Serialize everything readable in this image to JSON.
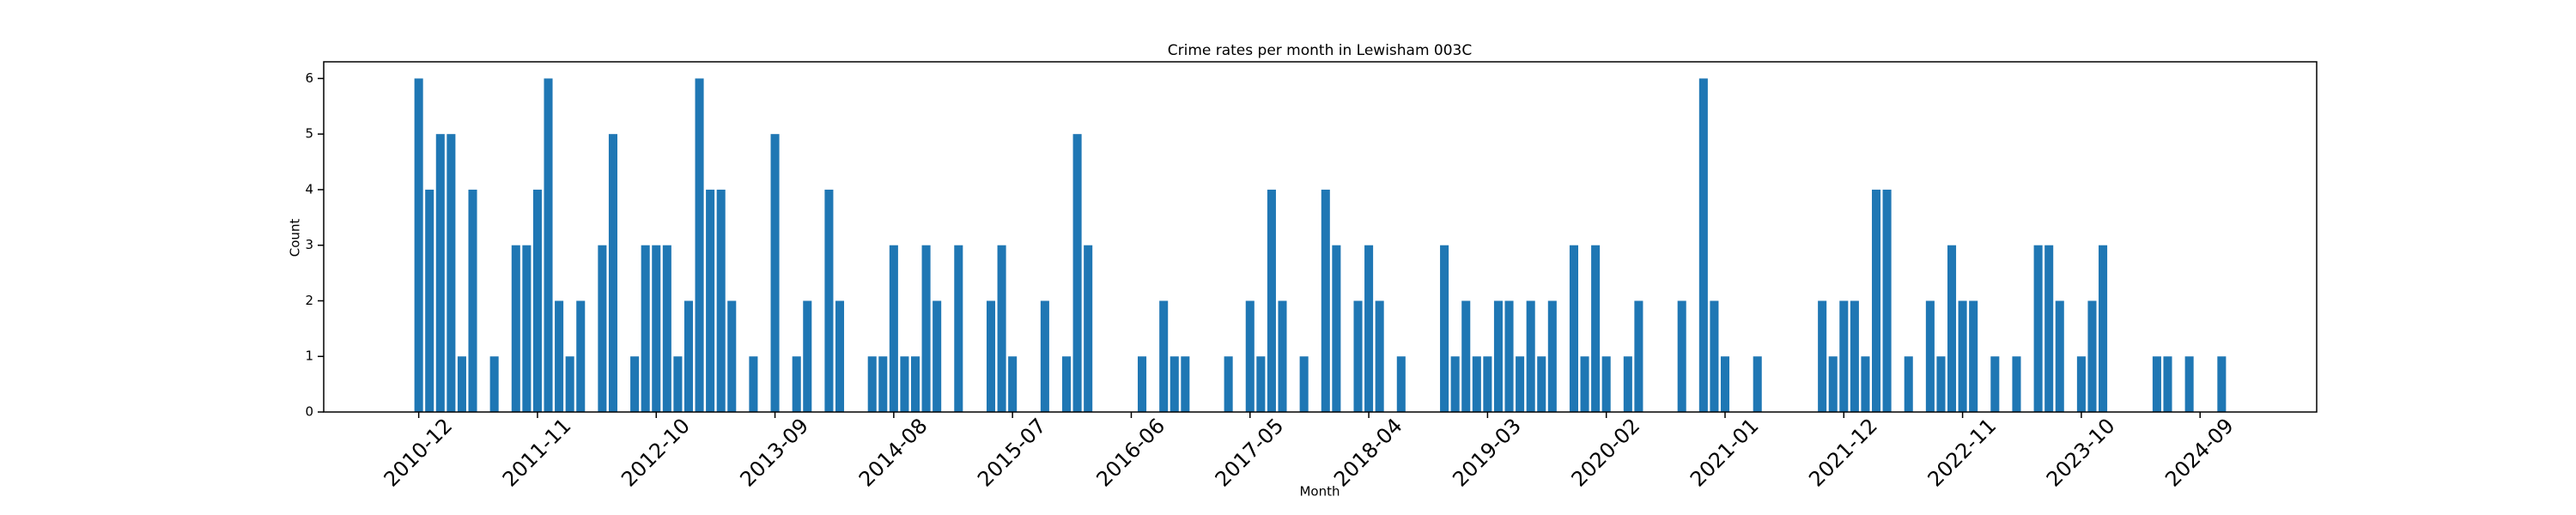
{
  "chart_data": {
    "type": "bar",
    "title": "Crime rates per month in Lewisham 003C",
    "x_label": "Month",
    "y_label": "Count",
    "color": "#1f77b4",
    "categories": [
      "2010-12",
      null,
      null,
      null,
      null,
      null,
      null,
      null,
      null,
      null,
      null,
      "2011-11",
      null,
      null,
      null,
      null,
      null,
      null,
      null,
      null,
      null,
      null,
      "2012-10",
      null,
      null,
      null,
      null,
      null,
      null,
      null,
      null,
      null,
      null,
      "2013-09",
      null,
      null,
      null,
      null,
      null,
      null,
      null,
      null,
      null,
      null,
      "2014-08",
      null,
      null,
      null,
      null,
      null,
      null,
      null,
      null,
      null,
      null,
      "2015-07",
      null,
      null,
      null,
      null,
      null,
      null,
      null,
      null,
      null,
      null,
      "2016-06",
      null,
      null,
      null,
      null,
      null,
      null,
      null,
      null,
      null,
      null,
      "2017-05",
      null,
      null,
      null,
      null,
      null,
      null,
      null,
      null,
      null,
      null,
      "2018-04",
      null,
      null,
      null,
      null,
      null,
      null,
      null,
      null,
      null,
      null,
      "2019-03",
      null,
      null,
      null,
      null,
      null,
      null,
      null,
      null,
      null,
      null,
      "2020-02",
      null,
      null,
      null,
      null,
      null,
      null,
      null,
      null,
      null,
      null,
      "2021-01",
      null,
      null,
      null,
      null,
      null,
      null,
      null,
      null,
      null,
      null,
      "2021-12",
      null,
      null,
      null,
      null,
      null,
      null,
      null,
      null,
      null,
      null,
      "2022-11",
      null,
      null,
      null,
      null,
      null,
      null,
      null,
      null,
      null,
      null,
      "2023-10",
      null,
      null,
      null,
      null,
      null,
      null,
      null,
      null,
      null,
      null,
      "2024-09",
      null,
      null
    ],
    "values": [
      6,
      4,
      5,
      5,
      1,
      4,
      0,
      1,
      0,
      3,
      3,
      4,
      6,
      2,
      1,
      2,
      0,
      3,
      5,
      0,
      1,
      3,
      3,
      3,
      1,
      2,
      6,
      4,
      4,
      2,
      0,
      1,
      0,
      5,
      0,
      1,
      2,
      0,
      4,
      2,
      0,
      0,
      1,
      1,
      3,
      1,
      1,
      3,
      2,
      0,
      3,
      0,
      0,
      2,
      3,
      1,
      0,
      0,
      2,
      0,
      1,
      5,
      3,
      0,
      0,
      0,
      0,
      1,
      0,
      2,
      1,
      1,
      0,
      0,
      0,
      1,
      0,
      2,
      1,
      4,
      2,
      0,
      1,
      0,
      4,
      3,
      0,
      2,
      3,
      2,
      0,
      1,
      0,
      0,
      0,
      3,
      1,
      2,
      1,
      1,
      2,
      2,
      1,
      2,
      1,
      2,
      0,
      3,
      1,
      3,
      1,
      0,
      1,
      2,
      0,
      0,
      0,
      2,
      0,
      6,
      2,
      1,
      0,
      0,
      1,
      0,
      0,
      0,
      0,
      0,
      2,
      1,
      2,
      2,
      1,
      4,
      4,
      0,
      1,
      0,
      2,
      1,
      3,
      2,
      2,
      0,
      1,
      0,
      1,
      0,
      3,
      3,
      2,
      0,
      1,
      2,
      3,
      0,
      0,
      0,
      0,
      1,
      1,
      0,
      1,
      0,
      0,
      1
    ],
    "ylim": [
      0,
      6.3
    ],
    "yticks": [
      0,
      1,
      2,
      3,
      4,
      5,
      6
    ]
  }
}
